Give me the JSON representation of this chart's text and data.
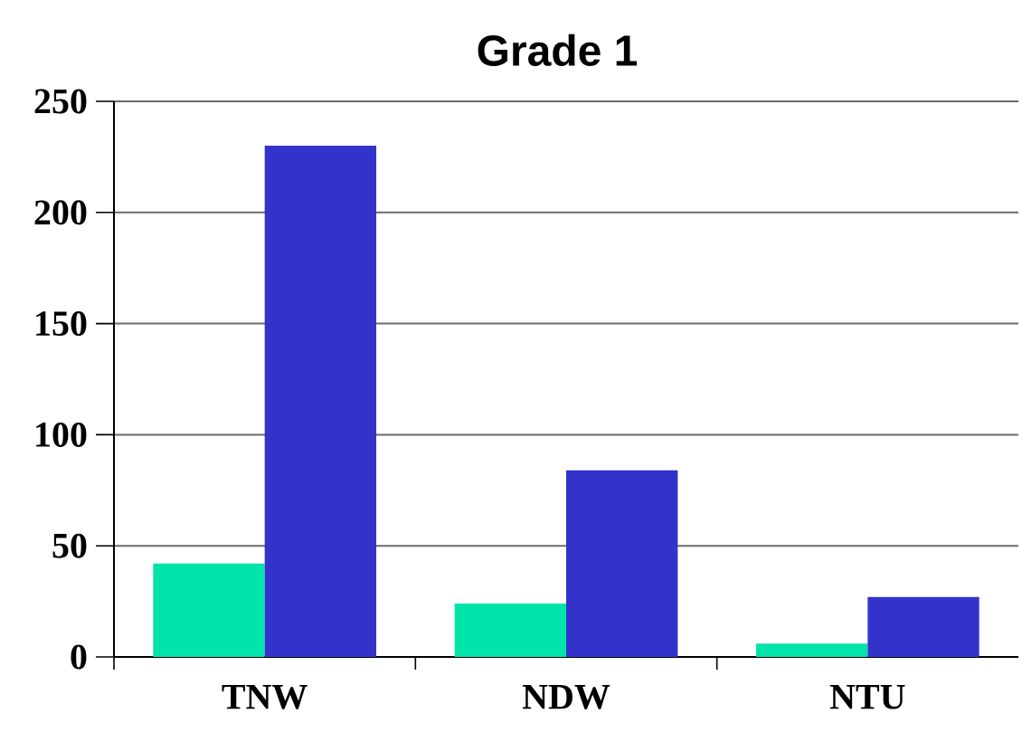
{
  "chart_data": {
    "type": "bar",
    "title": "Grade 1",
    "categories": [
      "TNW",
      "NDW",
      "NTU"
    ],
    "series": [
      {
        "color": "#00e4a9",
        "values": [
          42,
          24,
          6
        ]
      },
      {
        "color": "#3333cc",
        "values": [
          230,
          84,
          27
        ]
      }
    ],
    "ylim": [
      0,
      250
    ],
    "yticks": [
      0,
      50,
      100,
      150,
      200,
      250
    ],
    "grid": "y"
  }
}
